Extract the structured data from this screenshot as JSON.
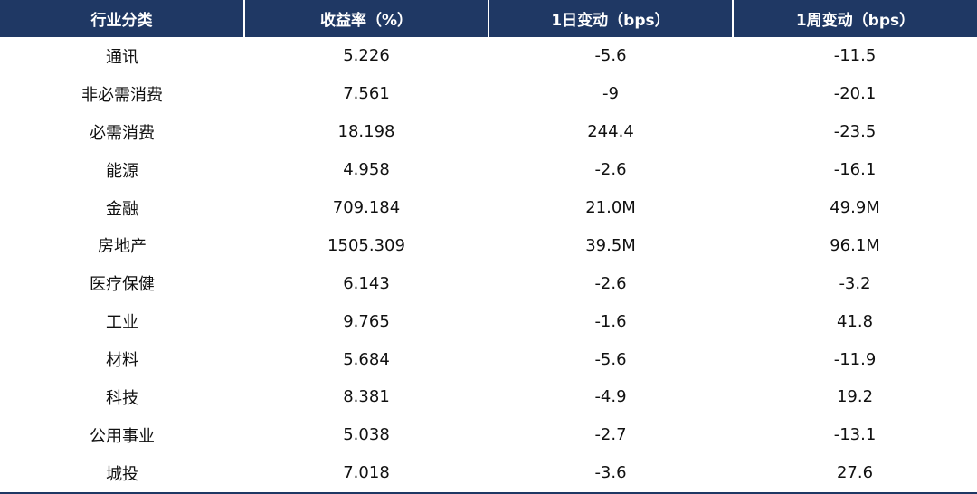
{
  "table": {
    "headers": [
      "行业分类",
      "收益率（%）",
      "1日变动（bps）",
      "1周变动（bps）"
    ],
    "rows": [
      [
        "通讯",
        "5.226",
        "-5.6",
        "-11.5"
      ],
      [
        "非必需消费",
        "7.561",
        "-9",
        "-20.1"
      ],
      [
        "必需消费",
        "18.198",
        "244.4",
        "-23.5"
      ],
      [
        "能源",
        "4.958",
        "-2.6",
        "-16.1"
      ],
      [
        "金融",
        "709.184",
        "21.0M",
        "49.9M"
      ],
      [
        "房地产",
        "1505.309",
        "39.5M",
        "96.1M"
      ],
      [
        "医疗保健",
        "6.143",
        "-2.6",
        "-3.2"
      ],
      [
        "工业",
        "9.765",
        "-1.6",
        "41.8"
      ],
      [
        "材料",
        "5.684",
        "-5.6",
        "-11.9"
      ],
      [
        "科技",
        "8.381",
        "-4.9",
        "19.2"
      ],
      [
        "公用事业",
        "5.038",
        "-2.7",
        "-13.1"
      ],
      [
        "城投",
        "7.018",
        "-3.6",
        "27.6"
      ]
    ]
  },
  "colors": {
    "header_bg": "#1f3864",
    "header_text": "#ffffff",
    "body_text": "#111111"
  }
}
